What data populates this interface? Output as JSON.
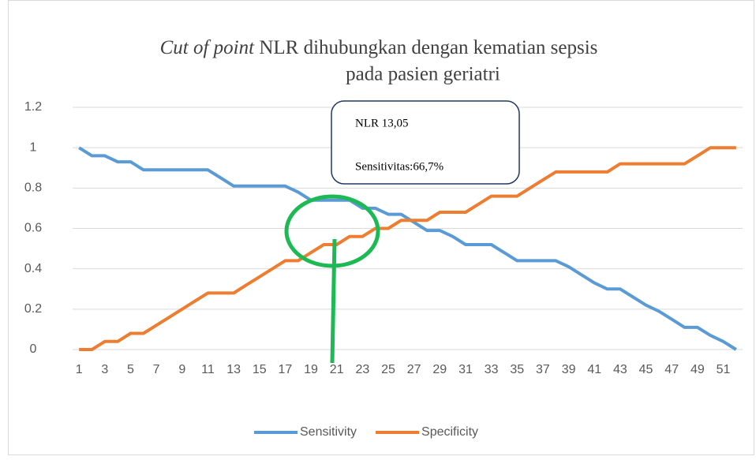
{
  "chart_data": {
    "type": "line",
    "title": [
      "Cut of point",
      "NLR dihubungkan dengan kematian sepsis",
      "pada pasien geriatri"
    ],
    "categories": [
      "1",
      null,
      "3",
      null,
      "5",
      null,
      "7",
      null,
      "9",
      null,
      "11",
      null,
      "13",
      null,
      "15",
      null,
      "17",
      null,
      "19",
      null,
      "21",
      null,
      "23",
      null,
      "25",
      null,
      "27",
      null,
      "29",
      null,
      "31",
      null,
      "33",
      null,
      "35",
      null,
      "37",
      null,
      "39",
      null,
      "41",
      null,
      "43",
      null,
      "45",
      null,
      "47",
      null,
      "49",
      null,
      "51",
      null
    ],
    "series": [
      {
        "name": "Sensitivity",
        "color": "#5b9bd5",
        "values": [
          1,
          0.96,
          0.96,
          0.93,
          0.93,
          0.89,
          0.89,
          0.89,
          0.89,
          0.89,
          0.89,
          0.85,
          0.81,
          0.81,
          0.81,
          0.81,
          0.81,
          0.78,
          0.74,
          0.74,
          0.74,
          0.74,
          0.7,
          0.7,
          0.67,
          0.67,
          0.63,
          0.59,
          0.59,
          0.56,
          0.52,
          0.52,
          0.52,
          0.48,
          0.44,
          0.44,
          0.44,
          0.44,
          0.41,
          0.37,
          0.33,
          0.3,
          0.3,
          0.26,
          0.22,
          0.19,
          0.15,
          0.11,
          0.11,
          0.07,
          0.04,
          0
        ]
      },
      {
        "name": "Specificity",
        "color": "#ed7d31",
        "values": [
          0,
          0,
          0.04,
          0.04,
          0.08,
          0.08,
          0.12,
          0.16,
          0.2,
          0.24,
          0.28,
          0.28,
          0.28,
          0.32,
          0.36,
          0.4,
          0.44,
          0.44,
          0.48,
          0.52,
          0.52,
          0.56,
          0.56,
          0.6,
          0.6,
          0.64,
          0.64,
          0.64,
          0.68,
          0.68,
          0.68,
          0.72,
          0.76,
          0.76,
          0.76,
          0.8,
          0.84,
          0.88,
          0.88,
          0.88,
          0.88,
          0.88,
          0.92,
          0.92,
          0.92,
          0.92,
          0.92,
          0.92,
          0.96,
          1,
          1,
          1
        ]
      }
    ],
    "ylim": [
      0,
      1.2
    ],
    "yticks": [
      0,
      0.2,
      0.4,
      0.6,
      0.8,
      1,
      1.2
    ],
    "grid": true,
    "legend": "bottom",
    "annotations": [
      "NLR 13,05",
      "Sensitivitas:66,7%"
    ]
  }
}
